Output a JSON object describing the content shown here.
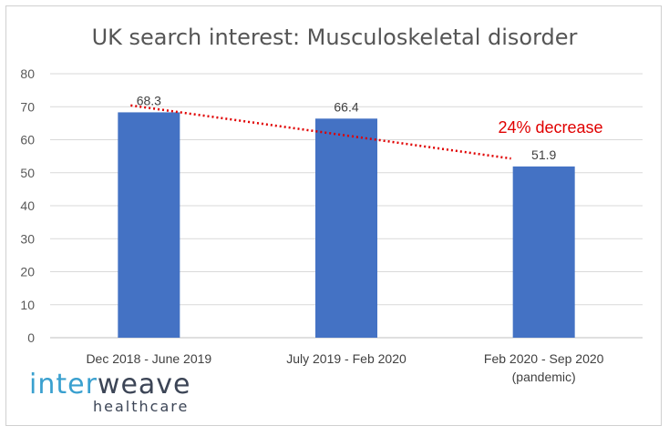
{
  "chart_data": {
    "type": "bar",
    "title": "UK search interest: Musculoskeletal disorder",
    "categories": [
      [
        "Dec 2018 - June 2019"
      ],
      [
        "July 2019 - Feb 2020"
      ],
      [
        "Feb 2020 - Sep 2020",
        "(pandemic)"
      ]
    ],
    "values": [
      68.3,
      66.4,
      51.9
    ],
    "data_labels": [
      "68.3",
      "66.4",
      "51.9"
    ],
    "ylim": [
      0,
      80
    ],
    "yticks": [
      0,
      10,
      20,
      30,
      40,
      50,
      60,
      70,
      80
    ],
    "grid": true,
    "bar_color": "#4472c4",
    "trendline": {
      "style": "dotted",
      "color": "#e00000",
      "from_value": 70.4,
      "to_value": 54.3
    },
    "annotation": {
      "text": "24% decrease",
      "color": "#e00000"
    }
  },
  "logo": {
    "part1": "inter",
    "part2": "weave",
    "sub": "healthcare"
  }
}
